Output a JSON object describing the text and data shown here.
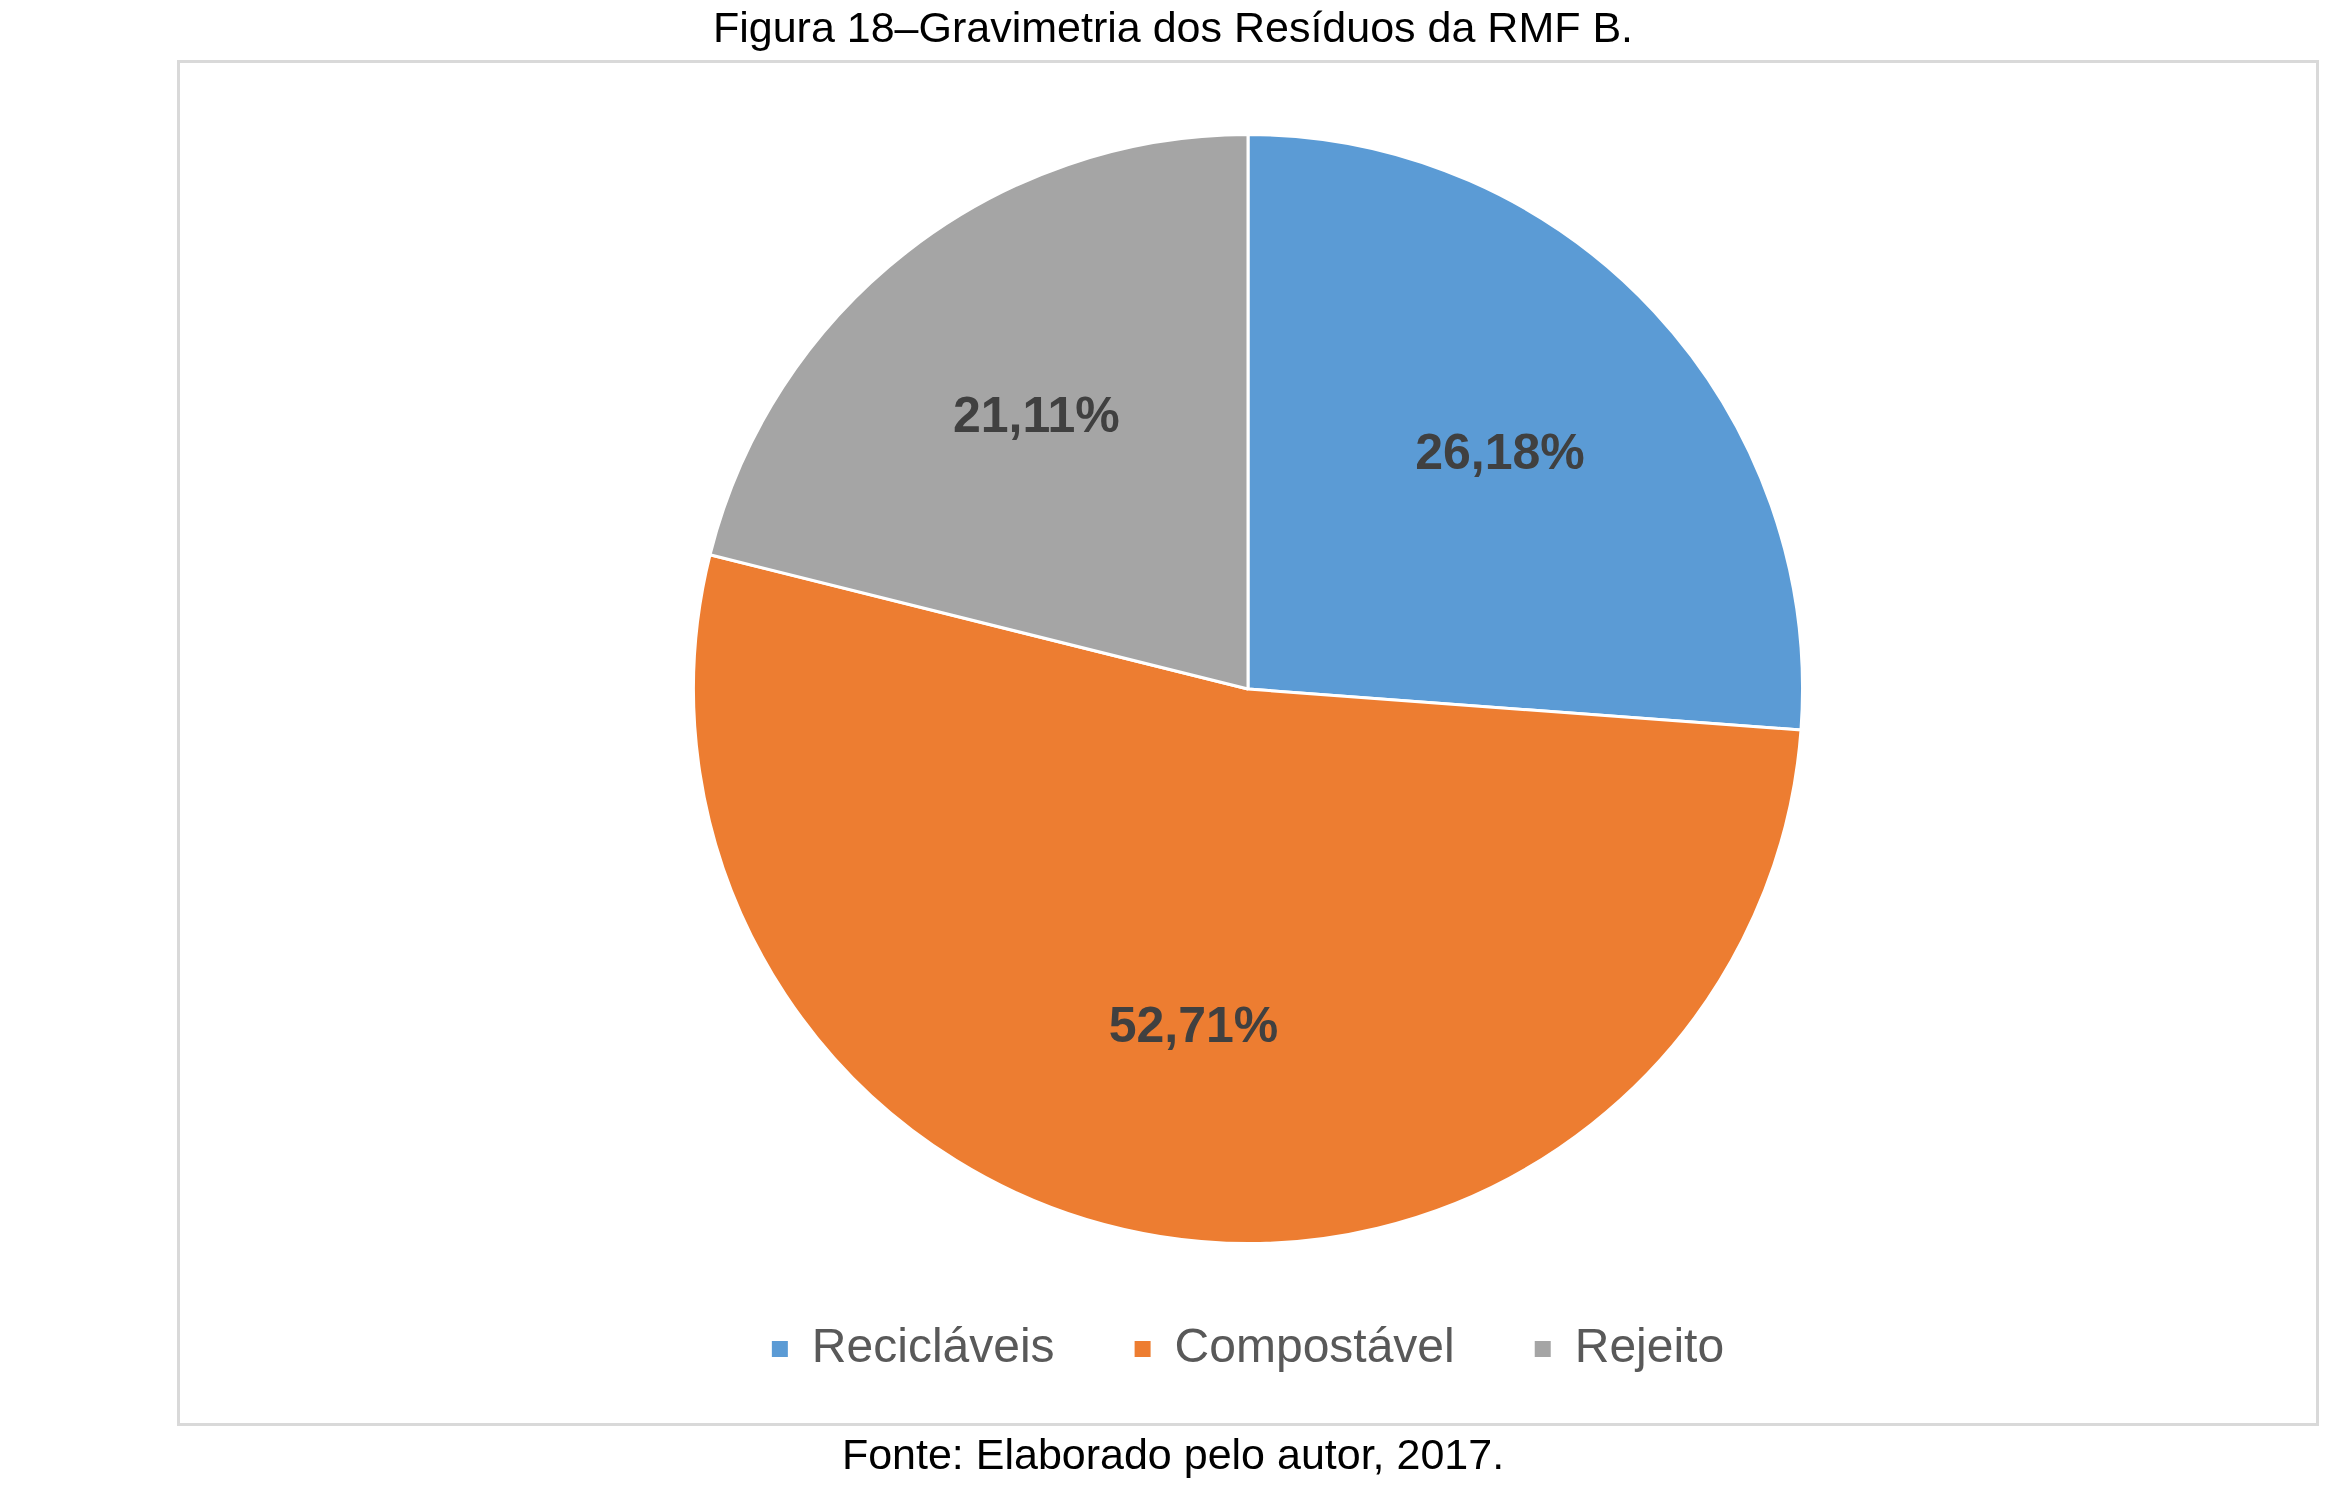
{
  "chart_data": {
    "type": "pie",
    "title": "Figura 18–Gravimetria dos Resíduos da RMF B.",
    "categories": [
      "Recicláveis",
      "Compostável",
      "Rejeito"
    ],
    "values": [
      26.18,
      52.71,
      21.11
    ],
    "colors": [
      "#5b9bd5",
      "#ed7d31",
      "#a5a5a5"
    ],
    "value_labels": [
      "26,18%",
      "52,71%",
      "21,11%"
    ],
    "legend": "bottom",
    "annotations": [
      "Fonte: Elaborado pelo autor, 2017."
    ]
  }
}
